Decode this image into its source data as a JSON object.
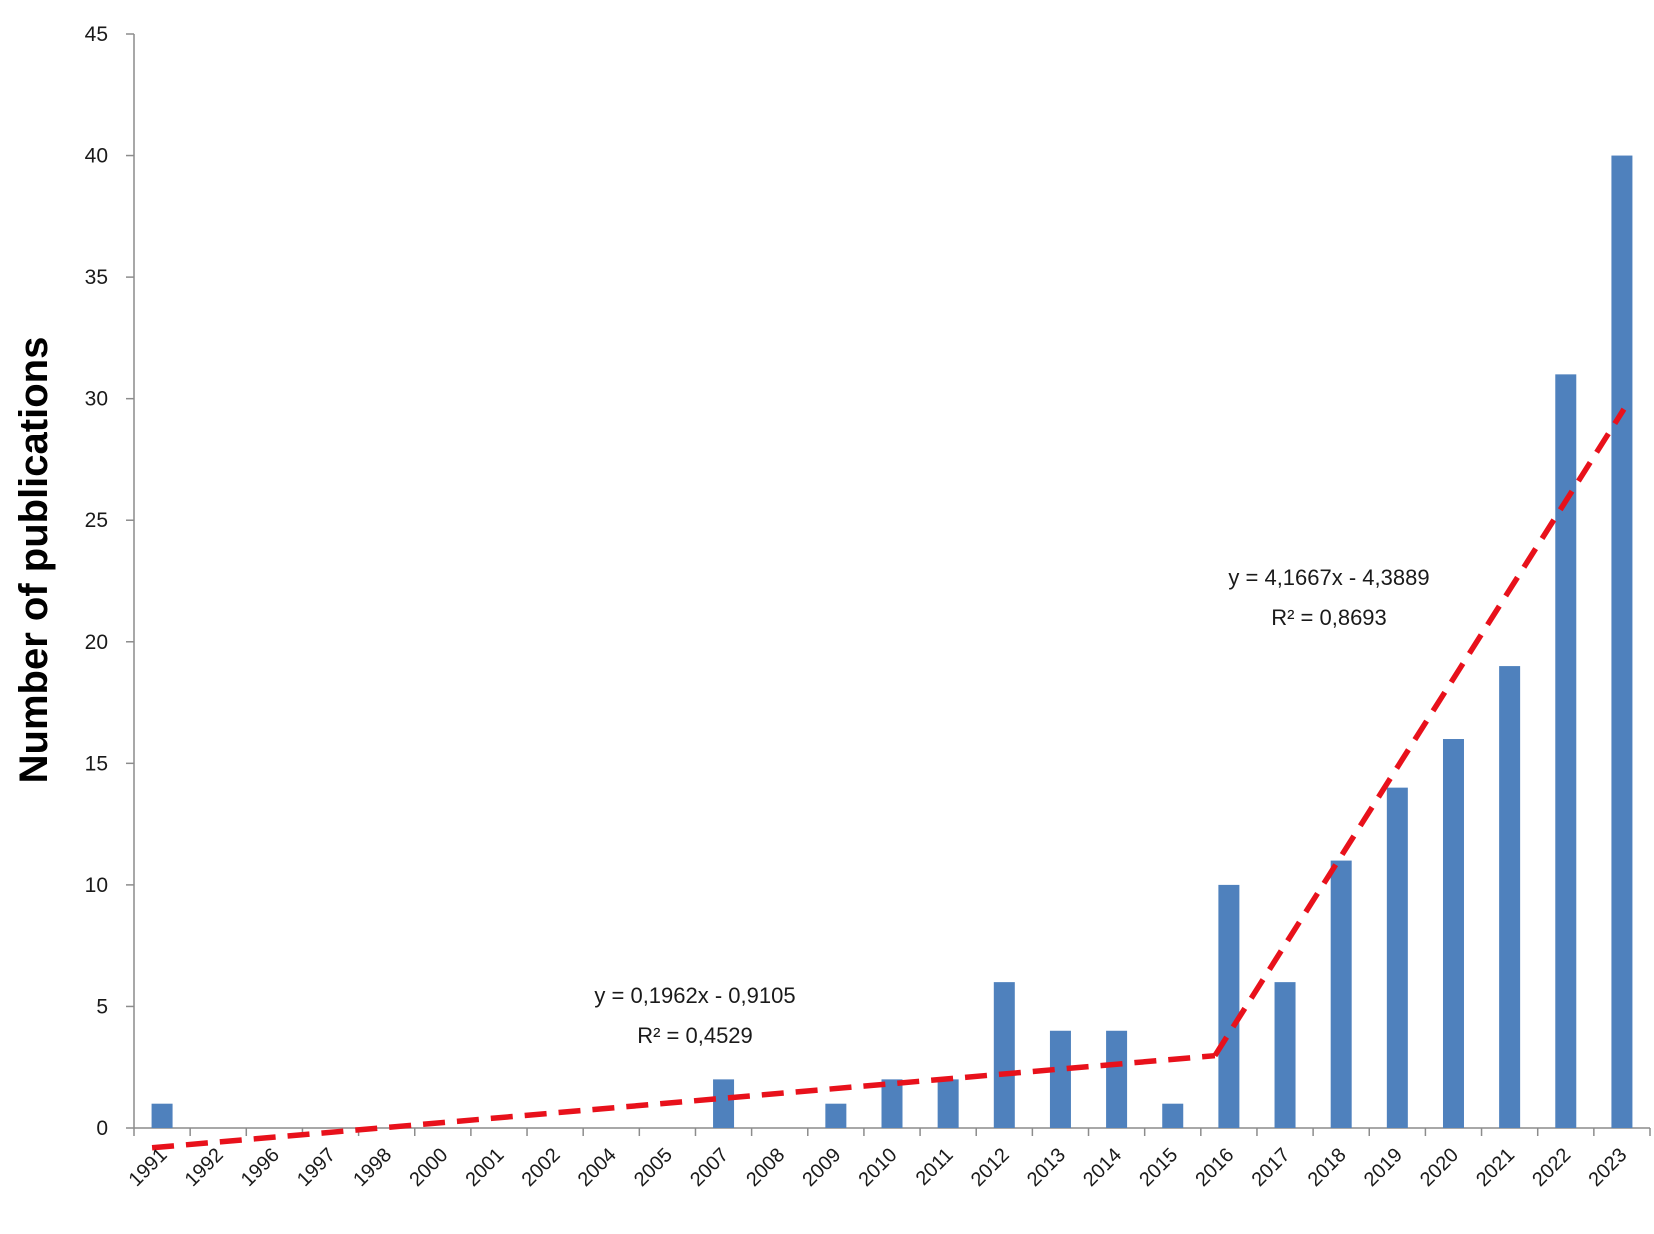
{
  "chart_data": {
    "type": "bar",
    "ylabel": "Number of publications",
    "xlabel": "",
    "ylim": [
      0,
      45
    ],
    "yticks": [
      0,
      5,
      10,
      15,
      20,
      25,
      30,
      35,
      40,
      45
    ],
    "grid": false,
    "categories": [
      "1991",
      "1992",
      "1996",
      "1997",
      "1998",
      "2000",
      "2001",
      "2002",
      "2004",
      "2005",
      "2007",
      "2008",
      "2009",
      "2010",
      "2011",
      "2012",
      "2013",
      "2014",
      "2015",
      "2016",
      "2017",
      "2018",
      "2019",
      "2020",
      "2021",
      "2022",
      "2023"
    ],
    "series": [
      {
        "values": [
          1,
          0,
          0,
          0,
          0,
          0,
          0,
          0,
          0,
          0,
          2,
          0,
          1,
          2,
          2,
          6,
          4,
          4,
          1,
          10,
          6,
          11,
          14,
          16,
          19,
          31,
          40
        ]
      }
    ],
    "trendlines": [
      {
        "equation": "y = 0,1962x - 0,9105",
        "r2": "R² = 0,4529",
        "slope": 0.1962,
        "intercept": -0.9105,
        "from_category": "1991",
        "to_category": "2016"
      },
      {
        "equation": "y = 4,1667x - 4,3889",
        "r2": "R² = 0,8693",
        "slope": 4.1667,
        "intercept": -4.3889,
        "from_category": "2016",
        "to_category": "2023"
      }
    ],
    "colors": {
      "bar": "#4f81bd",
      "trendline": "#e8111b",
      "axis": "#8c8c8c"
    }
  }
}
